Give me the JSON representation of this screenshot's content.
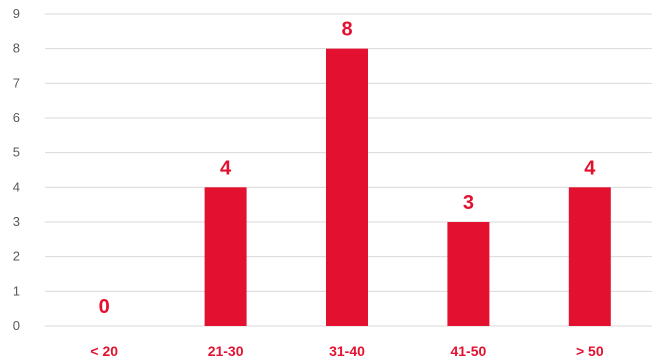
{
  "chart_data": {
    "type": "bar",
    "categories": [
      "< 20",
      "21-30",
      "31-40",
      "41-50",
      "> 50"
    ],
    "values": [
      0,
      4,
      8,
      3,
      4
    ],
    "data_labels": [
      "0",
      "4",
      "8",
      "3",
      "4"
    ],
    "y_ticks": [
      "0",
      "1",
      "2",
      "3",
      "4",
      "5",
      "6",
      "7",
      "8",
      "9"
    ],
    "ylim": [
      0,
      9
    ],
    "grid": true,
    "legend": "none",
    "colors": {
      "bar": "#e3112f",
      "label": "#e3112f",
      "tick": "#595959",
      "grid": "#d9d9d9"
    }
  }
}
